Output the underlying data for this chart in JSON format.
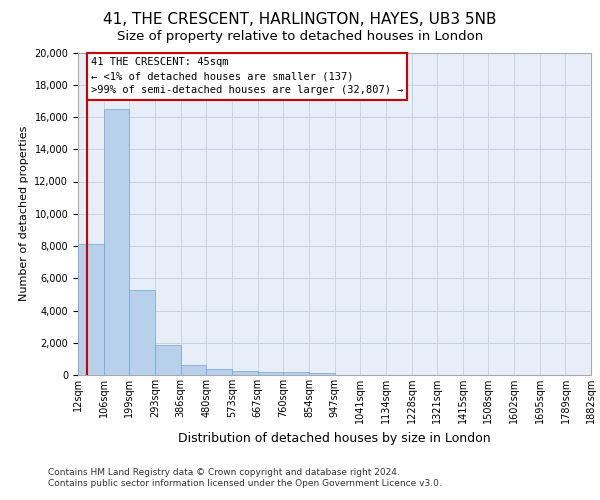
{
  "title": "41, THE CRESCENT, HARLINGTON, HAYES, UB3 5NB",
  "subtitle": "Size of property relative to detached houses in London",
  "xlabel": "Distribution of detached houses by size in London",
  "ylabel": "Number of detached properties",
  "bar_values": [
    8100,
    16500,
    5300,
    1850,
    650,
    350,
    275,
    200,
    175,
    150,
    0,
    0,
    0,
    0,
    0,
    0,
    0,
    0,
    0,
    0
  ],
  "bin_edges": [
    12,
    106,
    199,
    293,
    386,
    480,
    573,
    667,
    760,
    854,
    947,
    1041,
    1134,
    1228,
    1321,
    1415,
    1508,
    1602,
    1695,
    1789,
    1882
  ],
  "bar_color": "#b8d0ea",
  "bar_edge_color": "#6aaad4",
  "grid_color": "#c8d4e4",
  "background_color": "#e8eef8",
  "vline_x": 45,
  "vline_color": "#cc0000",
  "annotation_line1": "41 THE CRESCENT: 45sqm",
  "annotation_line2": "← <1% of detached houses are smaller (137)",
  "annotation_line3": ">99% of semi-detached houses are larger (32,807) →",
  "annotation_box_edgecolor": "#cc0000",
  "ylim_max": 20000,
  "yticks": [
    0,
    2000,
    4000,
    6000,
    8000,
    10000,
    12000,
    14000,
    16000,
    18000,
    20000
  ],
  "footer_line1": "Contains HM Land Registry data © Crown copyright and database right 2024.",
  "footer_line2": "Contains public sector information licensed under the Open Government Licence v3.0.",
  "title_fontsize": 11,
  "subtitle_fontsize": 9.5,
  "xlabel_fontsize": 9,
  "ylabel_fontsize": 8,
  "tick_fontsize": 7,
  "annotation_fontsize": 7.5,
  "footer_fontsize": 6.5
}
